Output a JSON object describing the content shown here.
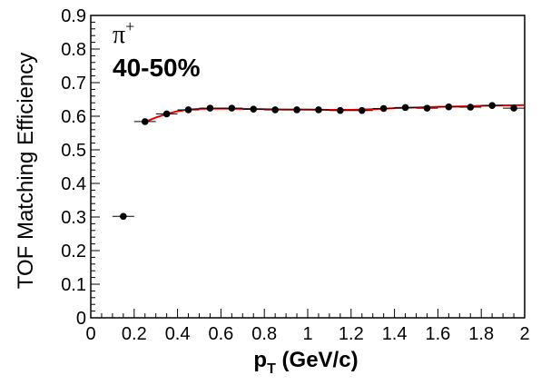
{
  "chart_data": {
    "type": "scatter",
    "title": "",
    "xlabel_main": "p",
    "xlabel_sub": "T",
    "xlabel_rest": " (GeV/c)",
    "ylabel": "TOF Matching Efficiency",
    "xlim": [
      0,
      2
    ],
    "ylim": [
      0,
      0.9
    ],
    "x_ticks": [
      0,
      0.2,
      0.4,
      0.6,
      0.8,
      1,
      1.2,
      1.4,
      1.6,
      1.8,
      2
    ],
    "x_tick_labels": [
      "0",
      "0.2",
      "0.4",
      "0.6",
      "0.8",
      "1",
      "1.2",
      "1.4",
      "1.6",
      "1.8",
      "2"
    ],
    "y_ticks": [
      0,
      0.1,
      0.2,
      0.3,
      0.4,
      0.5,
      0.6,
      0.7,
      0.8,
      0.9
    ],
    "y_tick_labels": [
      "0",
      "0.1",
      "0.2",
      "0.3",
      "0.4",
      "0.5",
      "0.6",
      "0.7",
      "0.8",
      "0.9"
    ],
    "annotations": {
      "particle": "π",
      "particle_charge": "+",
      "centrality": "40-50%"
    },
    "grid": false,
    "series": [
      {
        "x": [
          0.15,
          0.25,
          0.35,
          0.45,
          0.55,
          0.65,
          0.75,
          0.85,
          0.95,
          1.05,
          1.15,
          1.25,
          1.35,
          1.45,
          1.55,
          1.65,
          1.75,
          1.85,
          1.95
        ],
        "y": [
          0.302,
          0.584,
          0.607,
          0.619,
          0.624,
          0.624,
          0.621,
          0.619,
          0.619,
          0.619,
          0.617,
          0.617,
          0.623,
          0.626,
          0.624,
          0.628,
          0.627,
          0.632,
          0.624
        ],
        "x_err": 0.05,
        "color": "#000000"
      }
    ],
    "fit": {
      "color": "#e00000",
      "x": [
        0.25,
        0.3,
        0.35,
        0.4,
        0.45,
        0.5,
        0.6,
        0.7,
        0.8,
        0.9,
        1.0,
        1.1,
        1.2,
        1.3,
        1.4,
        1.5,
        1.6,
        1.7,
        1.8,
        1.9,
        2.0
      ],
      "y": [
        0.583,
        0.596,
        0.607,
        0.615,
        0.62,
        0.622,
        0.623,
        0.622,
        0.621,
        0.62,
        0.62,
        0.619,
        0.619,
        0.621,
        0.624,
        0.626,
        0.628,
        0.629,
        0.631,
        0.632,
        0.633
      ]
    }
  }
}
